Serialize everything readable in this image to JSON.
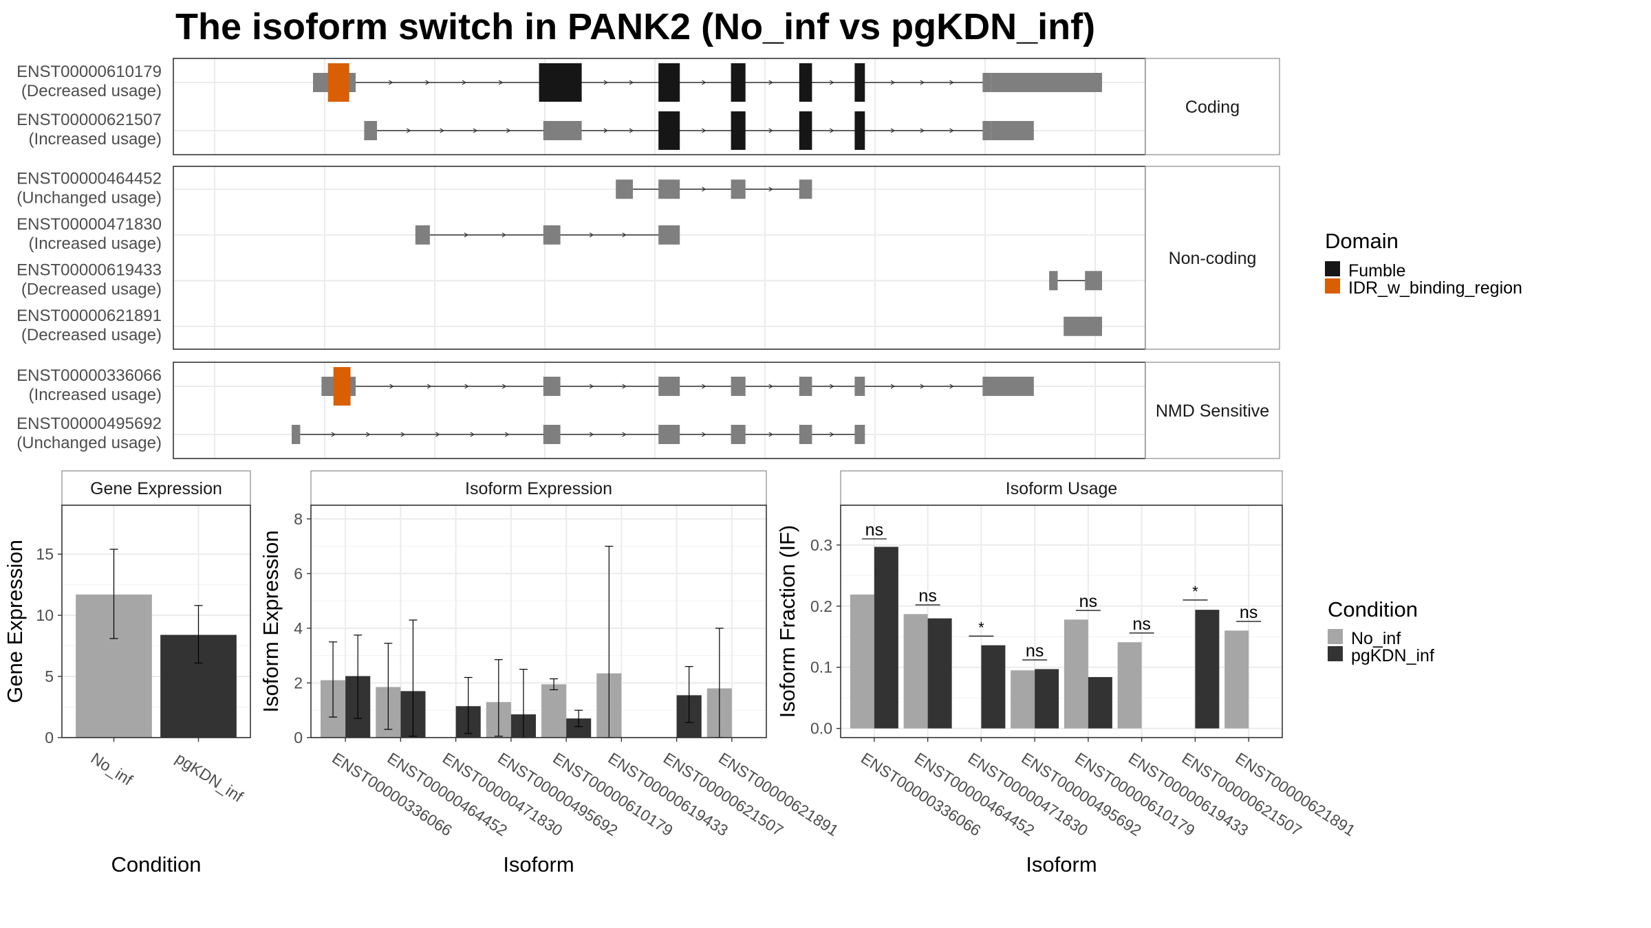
{
  "title": "The isoform switch in PANK2 (No_inf vs pgKDN_inf)",
  "colors": {
    "fumble": "#161616",
    "idr": "#d95f02",
    "utr": "#7f7f7f",
    "no_inf": "#a6a6a6",
    "pgkdn_inf": "#333333",
    "grid": "#ebebeb",
    "strip_fill": "#ffffff",
    "panel_border": "#333333",
    "strip_border": "#999999"
  },
  "legend_domain": {
    "title": "Domain",
    "items": [
      {
        "label": "Fumble",
        "color": "#161616"
      },
      {
        "label": "IDR_w_binding_region",
        "color": "#d95f02"
      }
    ]
  },
  "legend_condition": {
    "title": "Condition",
    "items": [
      {
        "label": "No_inf",
        "color": "#a6a6a6"
      },
      {
        "label": "pgKDN_inf",
        "color": "#333333"
      }
    ]
  },
  "transcript_panels": [
    {
      "strip": "Coding",
      "transcripts": [
        {
          "id": "ENST00000610179",
          "usage": "(Decreased usage)",
          "coding_span": [
            0.125,
            0.865
          ],
          "exons": [
            [
              0.075,
              0.125,
              "idr"
            ],
            [
              0.34,
              0.39,
              ""
            ],
            [
              0.48,
              0.505,
              ""
            ],
            [
              0.565,
              0.582,
              ""
            ],
            [
              0.645,
              0.66,
              ""
            ],
            [
              0.71,
              0.722,
              ""
            ],
            [
              0.86,
              0.87,
              ""
            ],
            [
              0.87,
              1.0,
              ""
            ]
          ]
        },
        {
          "id": "ENST00000621507",
          "usage": "(Increased usage)",
          "coding_span": [
            0.38,
            0.865
          ],
          "exons": [
            [
              0.135,
              0.15,
              ""
            ],
            [
              0.345,
              0.39,
              ""
            ],
            [
              0.48,
              0.505,
              ""
            ],
            [
              0.565,
              0.582,
              ""
            ],
            [
              0.645,
              0.66,
              ""
            ],
            [
              0.71,
              0.722,
              ""
            ],
            [
              0.86,
              0.87,
              ""
            ],
            [
              0.87,
              0.92,
              ""
            ]
          ]
        }
      ]
    },
    {
      "strip": "Non-coding",
      "transcripts": [
        {
          "id": "ENST00000464452",
          "usage": "(Unchanged usage)",
          "exons": [
            [
              0.43,
              0.45,
              ""
            ],
            [
              0.48,
              0.505,
              ""
            ],
            [
              0.565,
              0.582,
              ""
            ],
            [
              0.645,
              0.66,
              ""
            ]
          ]
        },
        {
          "id": "ENST00000471830",
          "usage": "(Increased usage)",
          "exons": [
            [
              0.195,
              0.212,
              ""
            ],
            [
              0.345,
              0.365,
              ""
            ],
            [
              0.48,
              0.505,
              ""
            ]
          ]
        },
        {
          "id": "ENST00000619433",
          "usage": "(Decreased usage)",
          "exons": [
            [
              0.938,
              0.948,
              ""
            ],
            [
              0.98,
              1.0,
              ""
            ]
          ]
        },
        {
          "id": "ENST00000621891",
          "usage": "(Decreased usage)",
          "exons": [
            [
              0.955,
              1.0,
              ""
            ]
          ]
        }
      ]
    },
    {
      "strip": "NMD Sensitive",
      "transcripts": [
        {
          "id": "ENST00000336066",
          "usage": "(Increased usage)",
          "coding_span": [
            0.1,
            0.125
          ],
          "exons": [
            [
              0.085,
              0.125,
              "idr"
            ],
            [
              0.345,
              0.365,
              ""
            ],
            [
              0.48,
              0.505,
              ""
            ],
            [
              0.565,
              0.582,
              ""
            ],
            [
              0.645,
              0.66,
              ""
            ],
            [
              0.71,
              0.722,
              ""
            ],
            [
              0.86,
              0.92,
              ""
            ]
          ]
        },
        {
          "id": "ENST00000495692",
          "usage": "(Unchanged usage)",
          "exons": [
            [
              0.05,
              0.06,
              ""
            ],
            [
              0.345,
              0.365,
              ""
            ],
            [
              0.48,
              0.505,
              ""
            ],
            [
              0.565,
              0.582,
              ""
            ],
            [
              0.645,
              0.66,
              ""
            ],
            [
              0.71,
              0.722,
              ""
            ]
          ]
        }
      ]
    }
  ],
  "chart_data": [
    {
      "type": "bar",
      "title": "Gene Expression",
      "xlabel": "Condition",
      "ylabel": "Gene Expression",
      "ylim": [
        0,
        19
      ],
      "yticks": [
        0,
        5,
        10,
        15
      ],
      "categories": [
        "No_inf",
        "pgKDN_inf"
      ],
      "values": [
        11.7,
        8.4
      ],
      "error_low": [
        8.1,
        6.1
      ],
      "error_high": [
        15.4,
        10.8
      ],
      "colors": [
        "#a6a6a6",
        "#333333"
      ]
    },
    {
      "type": "bar",
      "title": "Isoform Expression",
      "xlabel": "Isoform",
      "ylabel": "Isoform Expression",
      "ylim": [
        0,
        8.5
      ],
      "yticks": [
        0,
        2,
        4,
        6,
        8
      ],
      "categories": [
        "ENST00000336066",
        "ENST00000464452",
        "ENST00000471830",
        "ENST00000495692",
        "ENST00000610179",
        "ENST00000619433",
        "ENST00000621507",
        "ENST00000621891"
      ],
      "series": [
        {
          "name": "No_inf",
          "values": [
            2.1,
            1.85,
            0,
            1.3,
            1.95,
            2.35,
            0,
            1.8
          ],
          "error_low": [
            0.75,
            0.3,
            0,
            0.05,
            1.75,
            0,
            0,
            0
          ],
          "error_high": [
            3.5,
            3.45,
            0,
            2.85,
            2.15,
            7.0,
            0,
            4.0
          ]
        },
        {
          "name": "pgKDN_inf",
          "values": [
            2.25,
            1.7,
            1.15,
            0.85,
            0.7,
            0,
            1.55,
            0
          ],
          "error_low": [
            0.7,
            0.05,
            0.15,
            0.0,
            0.4,
            0,
            0.55,
            0
          ],
          "error_high": [
            3.75,
            4.3,
            2.2,
            2.5,
            1.0,
            0,
            2.6,
            0
          ]
        }
      ]
    },
    {
      "type": "bar",
      "title": "Isoform Usage",
      "xlabel": "Isoform",
      "ylabel": "Isoform Fraction (IF)",
      "ylim": [
        -0.015,
        0.365
      ],
      "yticks": [
        0.0,
        0.1,
        0.2,
        0.3
      ],
      "ytick_labels": [
        "0.0",
        "0.1",
        "0.2",
        "0.3"
      ],
      "categories": [
        "ENST00000336066",
        "ENST00000464452",
        "ENST00000471830",
        "ENST00000495692",
        "ENST00000610179",
        "ENST00000619433",
        "ENST00000621507",
        "ENST00000621891"
      ],
      "series": [
        {
          "name": "No_inf",
          "values": [
            0.219,
            0.187,
            0,
            0.095,
            0.178,
            0.141,
            0,
            0.16
          ]
        },
        {
          "name": "pgKDN_inf",
          "values": [
            0.297,
            0.18,
            0.136,
            0.097,
            0.084,
            0,
            0.194,
            0
          ]
        }
      ],
      "annotations": [
        "ns",
        "ns",
        "*",
        "ns",
        "ns",
        "ns",
        "*",
        "ns"
      ],
      "annotation_levels": [
        0.31,
        0.202,
        0.151,
        0.112,
        0.193,
        0.156,
        0.21,
        0.175
      ]
    }
  ]
}
